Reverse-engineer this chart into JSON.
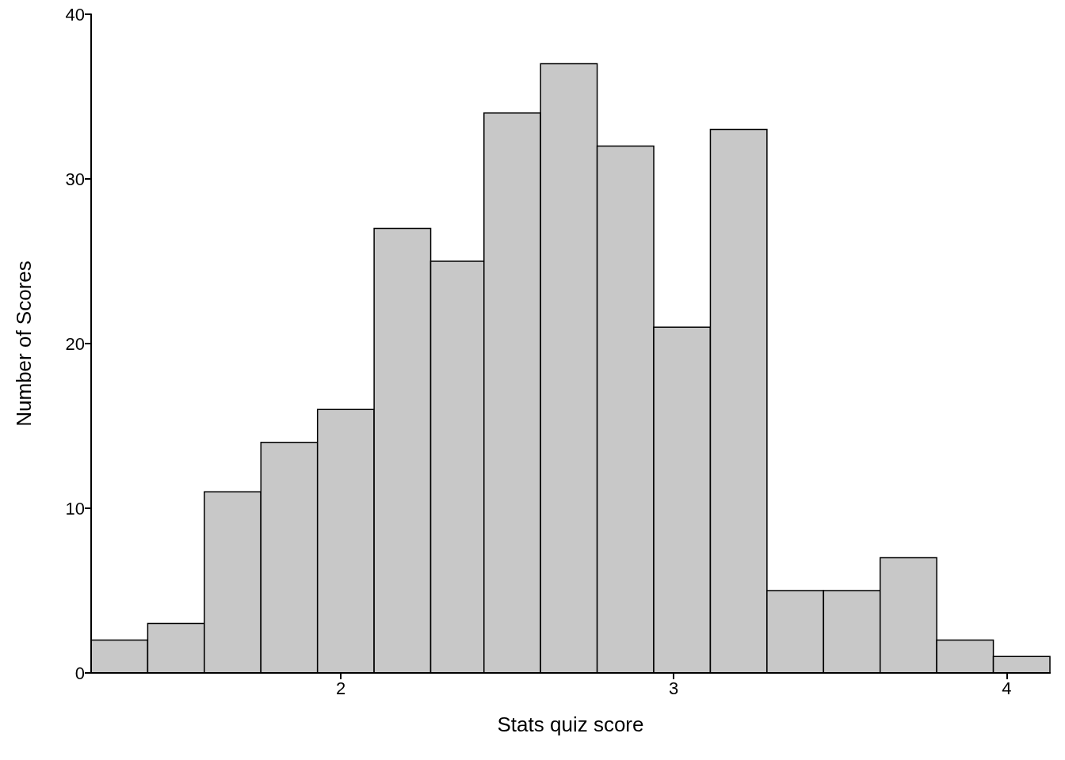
{
  "chart_data": {
    "type": "histogram",
    "xlabel": "Stats quiz score",
    "ylabel": "Number of Scores",
    "bins": [
      1.25,
      1.42,
      1.59,
      1.76,
      1.93,
      2.1,
      2.27,
      2.43,
      2.6,
      2.77,
      2.94,
      3.11,
      3.28,
      3.45,
      3.62,
      3.79,
      3.96,
      4.13
    ],
    "values": [
      2,
      3,
      11,
      14,
      16,
      27,
      25,
      34,
      37,
      32,
      21,
      33,
      5,
      5,
      7,
      2,
      1
    ],
    "color": "#c8c8c8",
    "xlim": [
      1.25,
      4.13
    ],
    "xticks": [
      2,
      3,
      4
    ],
    "ylim": [
      0,
      40
    ],
    "yticks": [
      0,
      10,
      20,
      30,
      40
    ],
    "grid": false
  }
}
